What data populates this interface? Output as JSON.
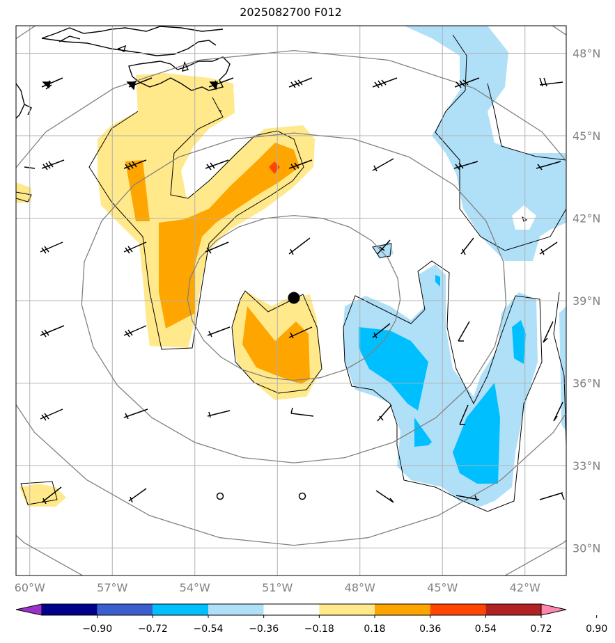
{
  "title": "2025082700 F012",
  "map": {
    "lon_range": [
      -60.5,
      -40.5
    ],
    "lat_range": [
      29,
      49
    ],
    "lon_ticks": [
      {
        "value": -60,
        "label": "60°W"
      },
      {
        "value": -57,
        "label": "57°W"
      },
      {
        "value": -54,
        "label": "54°W"
      },
      {
        "value": -51,
        "label": "51°W"
      },
      {
        "value": -48,
        "label": "48°W"
      },
      {
        "value": -45,
        "label": "45°W"
      },
      {
        "value": -42,
        "label": "42°W"
      }
    ],
    "lat_ticks": [
      {
        "value": 48,
        "label": "48°N"
      },
      {
        "value": 45,
        "label": "45°N"
      },
      {
        "value": 42,
        "label": "42°N"
      },
      {
        "value": 39,
        "label": "39°N"
      },
      {
        "value": 36,
        "label": "36°N"
      },
      {
        "value": 33,
        "label": "33°N"
      },
      {
        "value": 30,
        "label": "30°N"
      }
    ],
    "grid": true,
    "storm_center": {
      "lon": -50.4,
      "lat": 39.1
    },
    "range_rings_deg": [
      3,
      6,
      9,
      12
    ],
    "colors": {
      "grid": "#b0b0b0",
      "ring": "#808080",
      "coast": "#000000",
      "storm": "#000000"
    }
  },
  "colorbar": {
    "levels": [
      "−0.90",
      "−0.72",
      "−0.54",
      "−0.36",
      "−0.18",
      "0.18",
      "0.36",
      "0.54",
      "0.72",
      "0.90"
    ],
    "colors": [
      "#9932cc",
      "#00008b",
      "#3a5fcd",
      "#00bfff",
      "#b0e0f8",
      "#ffffff",
      "#ffe98a",
      "#ffa500",
      "#ff4500",
      "#b22222",
      "#ff88b0"
    ]
  }
}
